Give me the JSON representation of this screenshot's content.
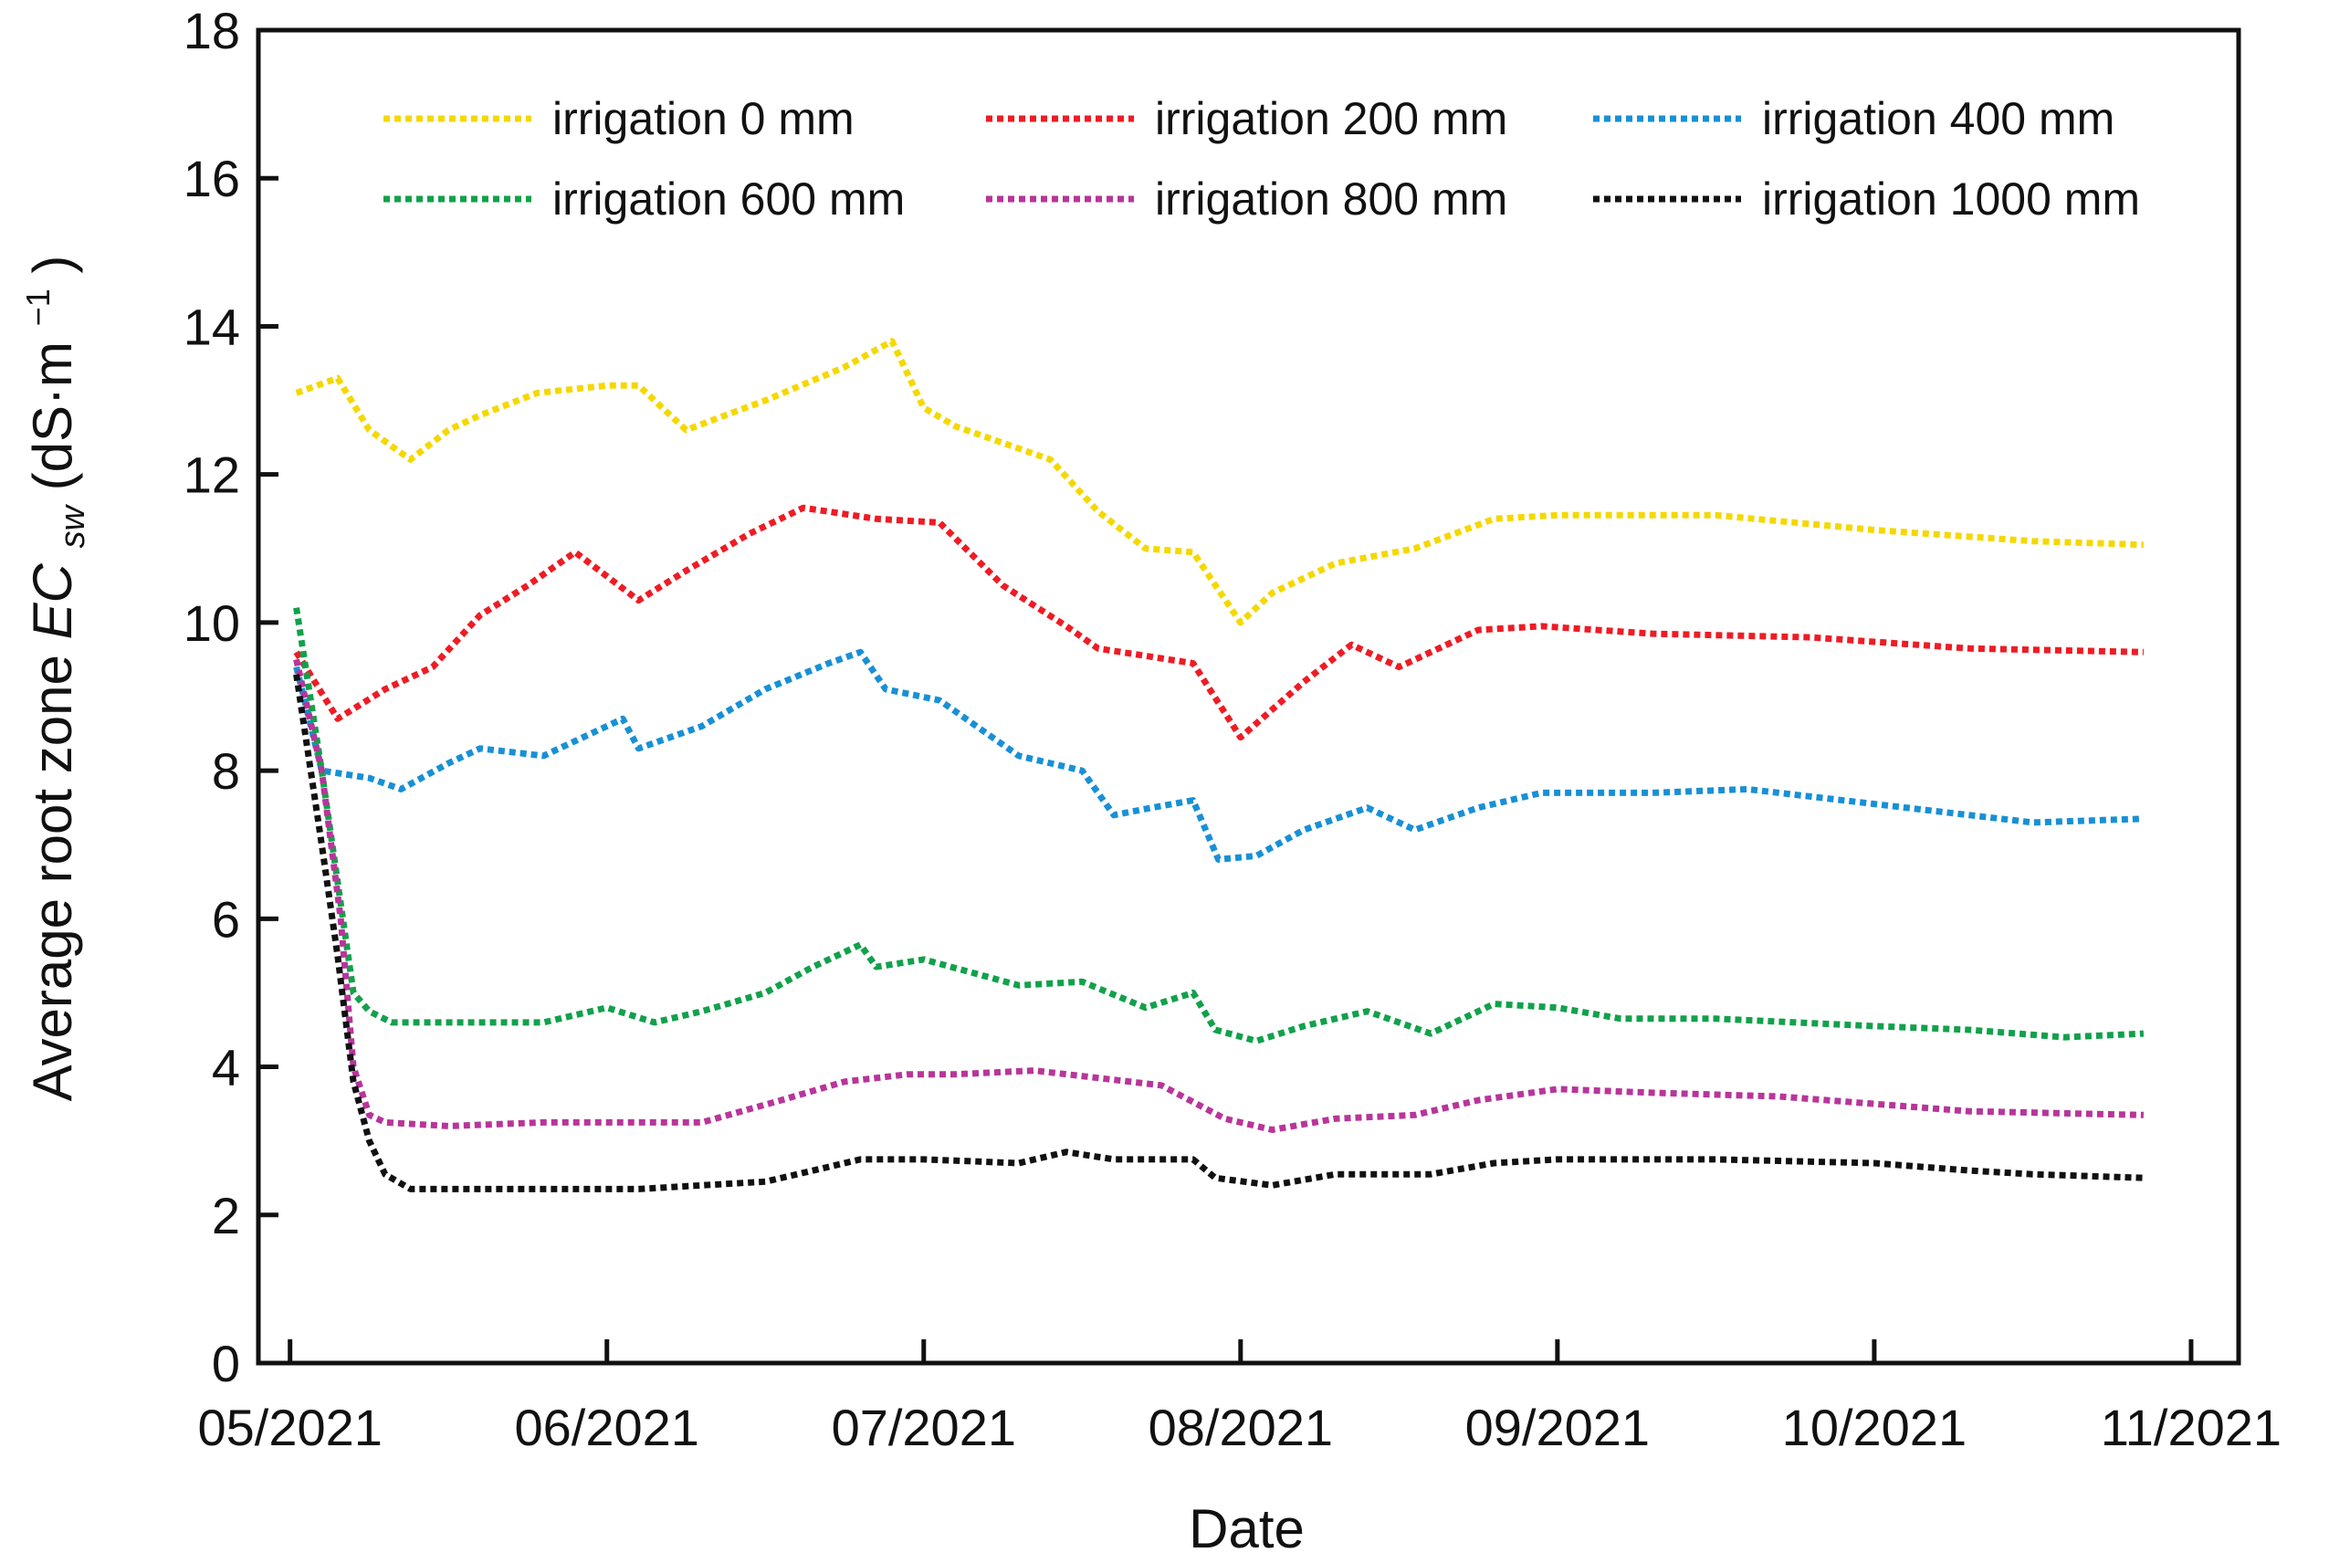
{
  "chart_data": {
    "type": "line",
    "title": "",
    "xlabel": "Date",
    "ylabel": {
      "prefix": "Average root zone ",
      "var_main": "EC",
      "var_sub": "sw",
      "units_open": " (dS·m",
      "units_sup": "−1",
      "units_close": ")"
    },
    "ylim": [
      0,
      18
    ],
    "yticks": [
      0,
      2,
      4,
      6,
      8,
      10,
      12,
      14,
      16,
      18
    ],
    "xlim": [
      -0.1,
      6.15
    ],
    "xticks": [
      {
        "value": 0,
        "label": "05/2021"
      },
      {
        "value": 1,
        "label": "06/2021"
      },
      {
        "value": 2,
        "label": "07/2021"
      },
      {
        "value": 3,
        "label": "08/2021"
      },
      {
        "value": 4,
        "label": "09/2021"
      },
      {
        "value": 5,
        "label": "10/2021"
      },
      {
        "value": 6,
        "label": "11/2021"
      }
    ],
    "x_unit": "months since 05/2021",
    "grid": false,
    "legend_position": "top",
    "series": [
      {
        "name": "irrigation 0 mm",
        "color": "#f5d800",
        "points": [
          [
            0.02,
            13.1
          ],
          [
            0.15,
            13.3
          ],
          [
            0.25,
            12.6
          ],
          [
            0.38,
            12.2
          ],
          [
            0.5,
            12.6
          ],
          [
            0.6,
            12.8
          ],
          [
            0.78,
            13.1
          ],
          [
            1.0,
            13.2
          ],
          [
            1.1,
            13.2
          ],
          [
            1.25,
            12.6
          ],
          [
            1.5,
            13.0
          ],
          [
            1.75,
            13.45
          ],
          [
            1.9,
            13.8
          ],
          [
            2.0,
            12.9
          ],
          [
            2.1,
            12.65
          ],
          [
            2.4,
            12.2
          ],
          [
            2.55,
            11.5
          ],
          [
            2.7,
            11.0
          ],
          [
            2.85,
            10.95
          ],
          [
            3.0,
            10.0
          ],
          [
            3.1,
            10.4
          ],
          [
            3.3,
            10.8
          ],
          [
            3.55,
            11.0
          ],
          [
            3.8,
            11.4
          ],
          [
            4.0,
            11.45
          ],
          [
            4.5,
            11.45
          ],
          [
            5.0,
            11.25
          ],
          [
            5.5,
            11.1
          ],
          [
            5.85,
            11.05
          ]
        ]
      },
      {
        "name": "irrigation 200 mm",
        "color": "#ee1c24",
        "points": [
          [
            0.02,
            9.6
          ],
          [
            0.15,
            8.7
          ],
          [
            0.3,
            9.1
          ],
          [
            0.45,
            9.4
          ],
          [
            0.6,
            10.1
          ],
          [
            0.75,
            10.5
          ],
          [
            0.9,
            10.95
          ],
          [
            1.1,
            10.3
          ],
          [
            1.25,
            10.7
          ],
          [
            1.45,
            11.2
          ],
          [
            1.62,
            11.55
          ],
          [
            1.85,
            11.4
          ],
          [
            2.05,
            11.35
          ],
          [
            2.25,
            10.5
          ],
          [
            2.45,
            9.95
          ],
          [
            2.55,
            9.65
          ],
          [
            2.85,
            9.45
          ],
          [
            3.0,
            8.45
          ],
          [
            3.2,
            9.2
          ],
          [
            3.35,
            9.7
          ],
          [
            3.5,
            9.4
          ],
          [
            3.75,
            9.9
          ],
          [
            3.95,
            9.95
          ],
          [
            4.3,
            9.85
          ],
          [
            4.8,
            9.8
          ],
          [
            5.3,
            9.65
          ],
          [
            5.85,
            9.6
          ]
        ]
      },
      {
        "name": "irrigation 400 mm",
        "color": "#1890d6",
        "points": [
          [
            0.02,
            9.4
          ],
          [
            0.1,
            8.0
          ],
          [
            0.25,
            7.9
          ],
          [
            0.35,
            7.75
          ],
          [
            0.5,
            8.1
          ],
          [
            0.6,
            8.3
          ],
          [
            0.8,
            8.2
          ],
          [
            1.0,
            8.6
          ],
          [
            1.05,
            8.7
          ],
          [
            1.1,
            8.3
          ],
          [
            1.3,
            8.6
          ],
          [
            1.5,
            9.1
          ],
          [
            1.7,
            9.45
          ],
          [
            1.8,
            9.6
          ],
          [
            1.88,
            9.1
          ],
          [
            2.05,
            8.95
          ],
          [
            2.3,
            8.2
          ],
          [
            2.5,
            8.0
          ],
          [
            2.6,
            7.4
          ],
          [
            2.72,
            7.5
          ],
          [
            2.85,
            7.6
          ],
          [
            2.93,
            6.8
          ],
          [
            3.05,
            6.85
          ],
          [
            3.2,
            7.2
          ],
          [
            3.4,
            7.5
          ],
          [
            3.55,
            7.2
          ],
          [
            3.75,
            7.5
          ],
          [
            3.95,
            7.7
          ],
          [
            4.3,
            7.7
          ],
          [
            4.6,
            7.75
          ],
          [
            5.0,
            7.55
          ],
          [
            5.5,
            7.3
          ],
          [
            5.85,
            7.35
          ]
        ]
      },
      {
        "name": "irrigation 600 mm",
        "color": "#12a14b",
        "points": [
          [
            0.02,
            10.2
          ],
          [
            0.1,
            8.0
          ],
          [
            0.15,
            6.5
          ],
          [
            0.2,
            5.0
          ],
          [
            0.25,
            4.75
          ],
          [
            0.32,
            4.6
          ],
          [
            0.5,
            4.6
          ],
          [
            0.8,
            4.6
          ],
          [
            1.0,
            4.8
          ],
          [
            1.15,
            4.6
          ],
          [
            1.3,
            4.75
          ],
          [
            1.5,
            5.0
          ],
          [
            1.65,
            5.35
          ],
          [
            1.8,
            5.65
          ],
          [
            1.85,
            5.35
          ],
          [
            2.0,
            5.45
          ],
          [
            2.3,
            5.1
          ],
          [
            2.5,
            5.15
          ],
          [
            2.7,
            4.8
          ],
          [
            2.85,
            5.0
          ],
          [
            2.92,
            4.5
          ],
          [
            3.05,
            4.35
          ],
          [
            3.2,
            4.55
          ],
          [
            3.4,
            4.75
          ],
          [
            3.6,
            4.45
          ],
          [
            3.8,
            4.85
          ],
          [
            4.0,
            4.8
          ],
          [
            4.2,
            4.65
          ],
          [
            4.5,
            4.65
          ],
          [
            5.0,
            4.55
          ],
          [
            5.3,
            4.5
          ],
          [
            5.6,
            4.4
          ],
          [
            5.85,
            4.45
          ]
        ]
      },
      {
        "name": "irrigation 800 mm",
        "color": "#b8359a",
        "points": [
          [
            0.02,
            9.5
          ],
          [
            0.1,
            8.0
          ],
          [
            0.16,
            6.0
          ],
          [
            0.2,
            4.0
          ],
          [
            0.25,
            3.35
          ],
          [
            0.3,
            3.25
          ],
          [
            0.5,
            3.2
          ],
          [
            0.8,
            3.25
          ],
          [
            1.1,
            3.25
          ],
          [
            1.3,
            3.25
          ],
          [
            1.55,
            3.55
          ],
          [
            1.75,
            3.8
          ],
          [
            1.95,
            3.9
          ],
          [
            2.1,
            3.9
          ],
          [
            2.35,
            3.95
          ],
          [
            2.55,
            3.85
          ],
          [
            2.75,
            3.75
          ],
          [
            2.95,
            3.3
          ],
          [
            3.1,
            3.15
          ],
          [
            3.3,
            3.3
          ],
          [
            3.55,
            3.35
          ],
          [
            3.75,
            3.55
          ],
          [
            4.0,
            3.7
          ],
          [
            4.3,
            3.65
          ],
          [
            4.7,
            3.6
          ],
          [
            5.0,
            3.5
          ],
          [
            5.3,
            3.4
          ],
          [
            5.85,
            3.35
          ]
        ]
      },
      {
        "name": "irrigation 1000 mm",
        "color": "#111111",
        "points": [
          [
            0.02,
            9.3
          ],
          [
            0.1,
            7.0
          ],
          [
            0.15,
            5.5
          ],
          [
            0.2,
            3.8
          ],
          [
            0.25,
            3.0
          ],
          [
            0.3,
            2.55
          ],
          [
            0.38,
            2.35
          ],
          [
            0.5,
            2.35
          ],
          [
            0.8,
            2.35
          ],
          [
            1.1,
            2.35
          ],
          [
            1.3,
            2.4
          ],
          [
            1.5,
            2.45
          ],
          [
            1.7,
            2.65
          ],
          [
            1.8,
            2.75
          ],
          [
            2.0,
            2.75
          ],
          [
            2.3,
            2.7
          ],
          [
            2.45,
            2.85
          ],
          [
            2.6,
            2.75
          ],
          [
            2.85,
            2.75
          ],
          [
            2.92,
            2.5
          ],
          [
            3.1,
            2.4
          ],
          [
            3.3,
            2.55
          ],
          [
            3.6,
            2.55
          ],
          [
            3.8,
            2.7
          ],
          [
            4.0,
            2.75
          ],
          [
            4.5,
            2.75
          ],
          [
            5.0,
            2.7
          ],
          [
            5.3,
            2.6
          ],
          [
            5.5,
            2.55
          ],
          [
            5.85,
            2.5
          ]
        ]
      }
    ]
  }
}
